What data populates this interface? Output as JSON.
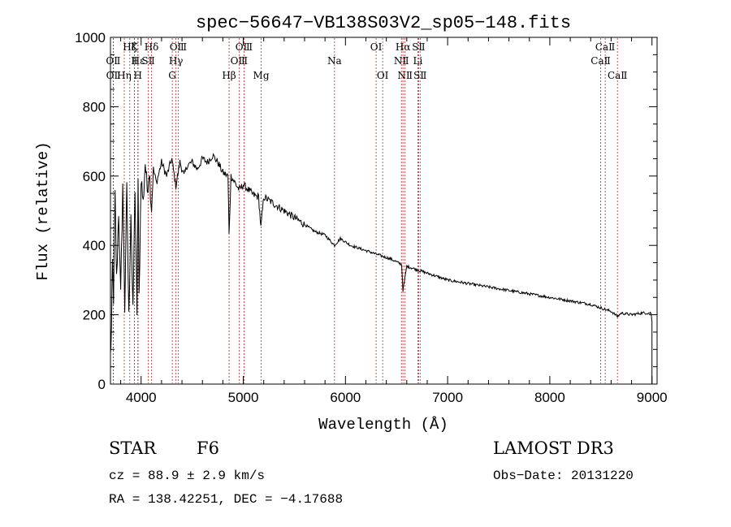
{
  "chart_data": {
    "type": "line",
    "title": "spec−56647−VB138S03V2_sp05−148.fits",
    "xlabel": "Wavelength (Å)",
    "ylabel": "Flux (relative)",
    "xlim": [
      3700,
      9050
    ],
    "ylim": [
      0,
      1000
    ],
    "x_ticks": [
      4000,
      5000,
      6000,
      7000,
      8000,
      9000
    ],
    "x_tick_labels": [
      "4000",
      "5000",
      "6000",
      "7000",
      "8000",
      "9000"
    ],
    "y_ticks": [
      0,
      200,
      400,
      600,
      800,
      1000
    ],
    "y_tick_labels": [
      "0",
      "200",
      "400",
      "600",
      "800",
      "1000"
    ],
    "series": [
      {
        "name": "flux",
        "x": [
          3700,
          3710,
          3720,
          3730,
          3745,
          3760,
          3780,
          3800,
          3820,
          3840,
          3860,
          3880,
          3900,
          3920,
          3940,
          3960,
          3970,
          3980,
          4000,
          4020,
          4040,
          4060,
          4080,
          4102,
          4120,
          4150,
          4200,
          4250,
          4300,
          4340,
          4380,
          4420,
          4450,
          4500,
          4550,
          4600,
          4650,
          4700,
          4750,
          4800,
          4850,
          4861,
          4880,
          4920,
          4960,
          5000,
          5050,
          5100,
          5150,
          5172,
          5200,
          5250,
          5300,
          5400,
          5500,
          5600,
          5700,
          5800,
          5893,
          5950,
          6050,
          6150,
          6250,
          6350,
          6450,
          6550,
          6563,
          6600,
          6700,
          6800,
          6900,
          7000,
          7100,
          7200,
          7400,
          7600,
          7800,
          8000,
          8200,
          8400,
          8498,
          8542,
          8600,
          8662,
          8700,
          8800,
          8900,
          8990,
          9000
        ],
        "y": [
          80,
          160,
          350,
          250,
          540,
          300,
          500,
          250,
          580,
          220,
          560,
          190,
          500,
          200,
          570,
          180,
          590,
          250,
          600,
          520,
          640,
          560,
          620,
          500,
          620,
          580,
          640,
          600,
          650,
          570,
          640,
          600,
          630,
          640,
          620,
          650,
          640,
          660,
          640,
          610,
          600,
          430,
          600,
          580,
          560,
          575,
          560,
          545,
          540,
          450,
          540,
          530,
          520,
          500,
          480,
          460,
          440,
          430,
          400,
          420,
          400,
          390,
          380,
          370,
          360,
          345,
          270,
          340,
          330,
          320,
          310,
          300,
          295,
          290,
          280,
          270,
          260,
          250,
          240,
          230,
          220,
          215,
          210,
          195,
          205,
          200,
          205,
          205,
          180
        ]
      }
    ],
    "lines": [
      {
        "label": "Hζ",
        "x": 3889,
        "row": 1
      },
      {
        "label": "OⅡ",
        "x": 3727,
        "row": 2
      },
      {
        "label": "OⅡ",
        "x": 3729,
        "row": 3
      },
      {
        "label": "Hε",
        "x": 3970,
        "row": 2
      },
      {
        "label": "Hη",
        "x": 3835,
        "row": 3
      },
      {
        "label": "K",
        "x": 3934,
        "row": 1
      },
      {
        "label": "Ⅱ",
        "x": 3934,
        "row": 2
      },
      {
        "label": "H",
        "x": 3968,
        "row": 3
      },
      {
        "label": "Hδ",
        "x": 4102,
        "row": 1
      },
      {
        "label": "SⅡ",
        "x": 4070,
        "row": 2
      },
      {
        "label": "OⅢ",
        "x": 4363,
        "row": 1
      },
      {
        "label": "Hγ",
        "x": 4341,
        "row": 2
      },
      {
        "label": "G",
        "x": 4305,
        "row": 3
      },
      {
        "label": "Hβ",
        "x": 4861,
        "row": 3
      },
      {
        "label": "OⅢ",
        "x": 5007,
        "row": 1
      },
      {
        "label": "OⅢ",
        "x": 4959,
        "row": 2
      },
      {
        "label": "Mg",
        "x": 5175,
        "row": 3
      },
      {
        "label": "Na",
        "x": 5893,
        "row": 2
      },
      {
        "label": "OⅠ",
        "x": 6300,
        "row": 1
      },
      {
        "label": "OⅠ",
        "x": 6364,
        "row": 3
      },
      {
        "label": "Hα",
        "x": 6563,
        "row": 1
      },
      {
        "label": "NⅡ",
        "x": 6548,
        "row": 2
      },
      {
        "label": "NⅡ",
        "x": 6583,
        "row": 3
      },
      {
        "label": "SⅡ",
        "x": 6716,
        "row": 1
      },
      {
        "label": "Li",
        "x": 6708,
        "row": 2
      },
      {
        "label": "SⅡ",
        "x": 6731,
        "row": 3
      },
      {
        "label": "CaⅡ",
        "x": 8542,
        "row": 1
      },
      {
        "label": "CaⅡ",
        "x": 8498,
        "row": 2
      },
      {
        "label": "CaⅡ",
        "x": 8662,
        "row": 3
      }
    ]
  },
  "info": {
    "class_label": "STAR",
    "subclass": "F6",
    "survey": "LAMOST DR3",
    "cz": "cz = 88.9 ± 2.9 km/s",
    "obs_date": "Obs−Date: 20131220",
    "coords": "RA = 138.42251, DEC =  −4.17688"
  }
}
